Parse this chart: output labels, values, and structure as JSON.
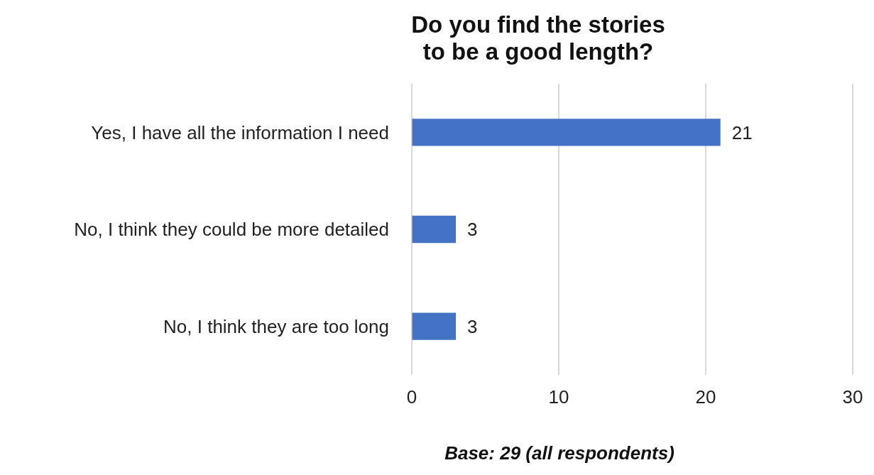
{
  "chart_data": {
    "type": "bar",
    "orientation": "horizontal",
    "title": "Do you find the stories to be a good length?",
    "categories": [
      "Yes, I have all the information I need",
      "No, I think they could be more detailed",
      "No, I think they are too long"
    ],
    "values": [
      21,
      3,
      3
    ],
    "color": "#4472c4",
    "xlim": [
      0,
      30
    ],
    "xticks": [
      0,
      10,
      20,
      30
    ],
    "grid": "x",
    "data_labels": true,
    "annotations": [
      "Base: 29 (all respondents)"
    ]
  }
}
